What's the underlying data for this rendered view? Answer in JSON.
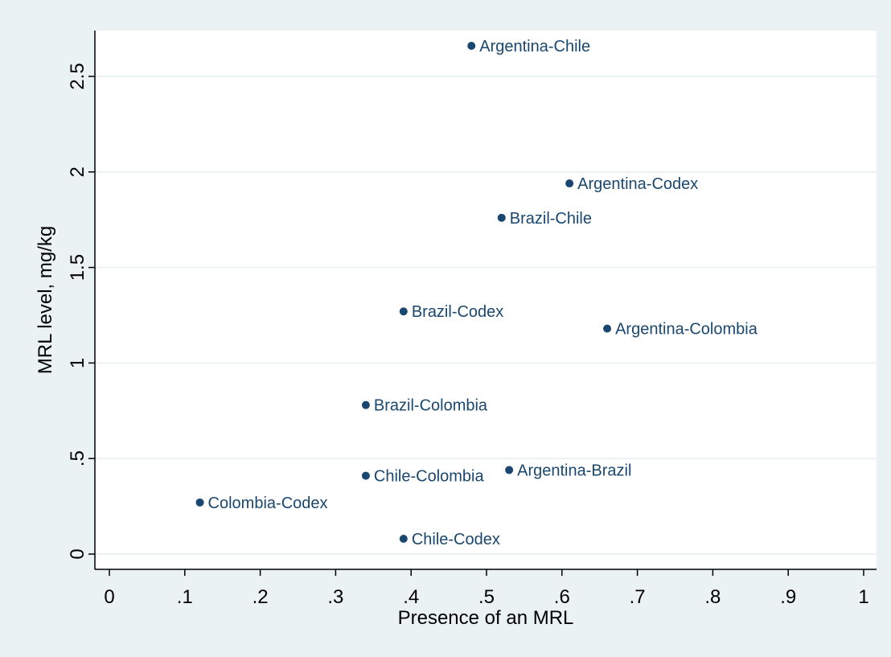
{
  "chart_data": {
    "type": "scatter",
    "title": "",
    "xlabel": "Presence of an MRL",
    "ylabel": "MRL level, mg/kg",
    "xlim": [
      0,
      1
    ],
    "ylim": [
      0,
      2.7
    ],
    "x_ticks": [
      {
        "value": 0,
        "label": "0"
      },
      {
        "value": 0.1,
        "label": ".1"
      },
      {
        "value": 0.2,
        "label": ".2"
      },
      {
        "value": 0.3,
        "label": ".3"
      },
      {
        "value": 0.4,
        "label": ".4"
      },
      {
        "value": 0.5,
        "label": ".5"
      },
      {
        "value": 0.6,
        "label": ".6"
      },
      {
        "value": 0.7,
        "label": ".7"
      },
      {
        "value": 0.8,
        "label": ".8"
      },
      {
        "value": 0.9,
        "label": ".9"
      },
      {
        "value": 1.0,
        "label": "1"
      }
    ],
    "y_ticks": [
      {
        "value": 0,
        "label": "0"
      },
      {
        "value": 0.5,
        "label": ".5"
      },
      {
        "value": 1.0,
        "label": "1"
      },
      {
        "value": 1.5,
        "label": "1.5"
      },
      {
        "value": 2.0,
        "label": "2"
      },
      {
        "value": 2.5,
        "label": "2.5"
      }
    ],
    "grid": "horizontal",
    "points": [
      {
        "label": "Argentina-Chile",
        "x": 0.48,
        "y": 2.66
      },
      {
        "label": "Argentina-Codex",
        "x": 0.61,
        "y": 1.94
      },
      {
        "label": "Brazil-Chile",
        "x": 0.52,
        "y": 1.76
      },
      {
        "label": "Brazil-Codex",
        "x": 0.39,
        "y": 1.27
      },
      {
        "label": "Argentina-Colombia",
        "x": 0.66,
        "y": 1.18
      },
      {
        "label": "Brazil-Colombia",
        "x": 0.34,
        "y": 0.78
      },
      {
        "label": "Argentina-Brazil",
        "x": 0.53,
        "y": 0.44
      },
      {
        "label": "Chile-Colombia",
        "x": 0.34,
        "y": 0.41
      },
      {
        "label": "Colombia-Codex",
        "x": 0.12,
        "y": 0.27
      },
      {
        "label": "Chile-Codex",
        "x": 0.39,
        "y": 0.08
      }
    ],
    "colors": {
      "marker": "#1a476f",
      "label": "#1a476f",
      "grid": "#eaf2f3",
      "axis": "#000000",
      "plot_bg": "#ffffff",
      "page_bg": "#eaf2f3"
    }
  }
}
